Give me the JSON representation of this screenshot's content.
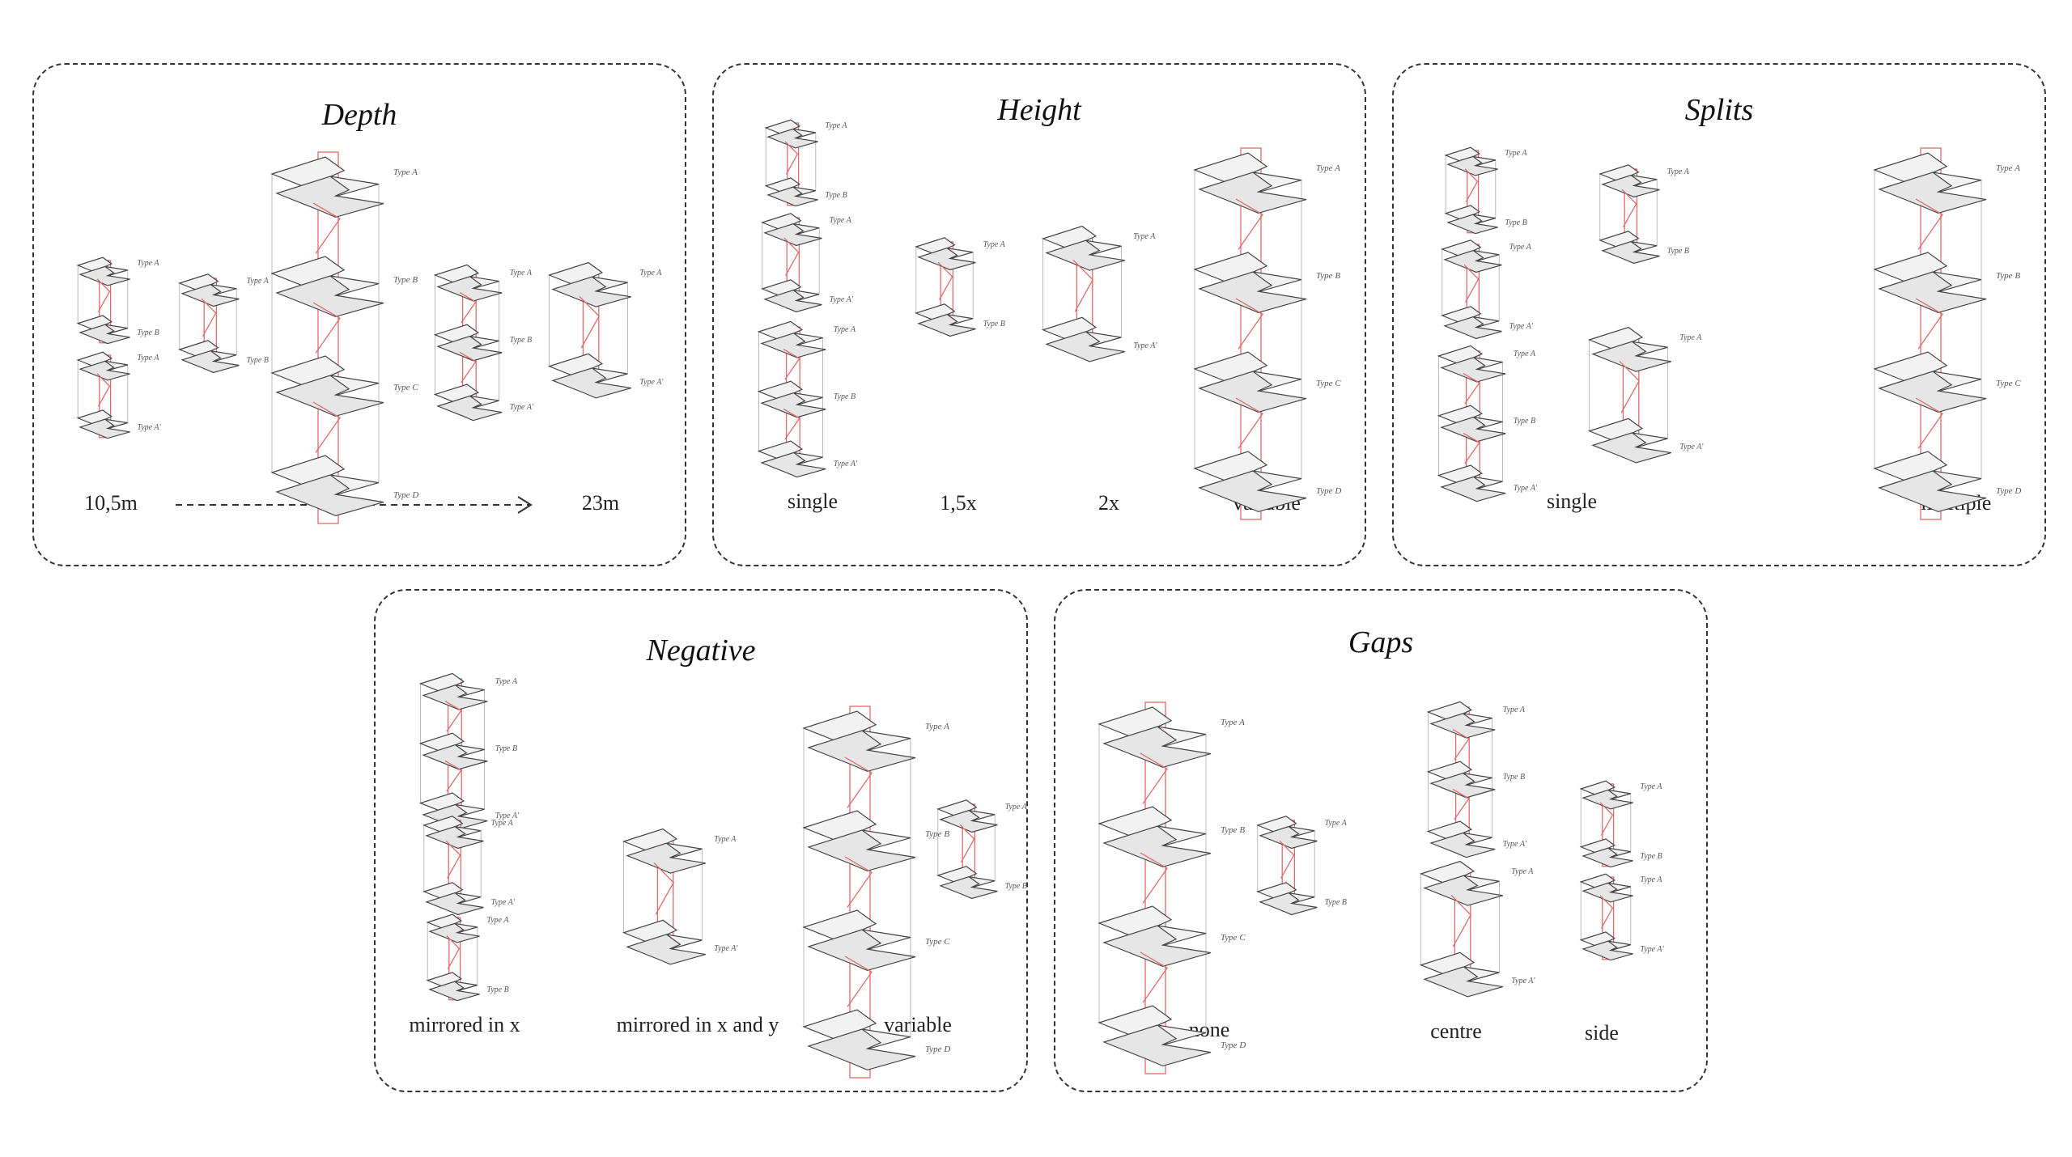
{
  "colors": {
    "line": "#444444",
    "accent": "#e06a6a",
    "border": "#333333"
  },
  "panels": {
    "depth": {
      "title": "Depth",
      "min_label": "10,5m",
      "max_label": "23m",
      "arrow_icon": "dashed-arrow-right",
      "groups": [
        {
          "labels": [
            "Type A",
            "Type B"
          ]
        },
        {
          "labels": [
            "Type A",
            "Type A'"
          ]
        },
        {
          "labels": [
            "Type A",
            "Type B"
          ]
        },
        {
          "labels": [
            "Type A",
            "Type B",
            "Type C",
            "Type D"
          ]
        },
        {
          "labels": [
            "Type A",
            "Type B",
            "Type A'"
          ]
        },
        {
          "labels": [
            "Type A",
            "Type A'"
          ]
        }
      ]
    },
    "height": {
      "title": "Height",
      "labels": [
        "single",
        "1,5x",
        "2x",
        "variable"
      ],
      "groups": [
        {
          "labels": [
            "Type A",
            "Type B"
          ]
        },
        {
          "labels": [
            "Type A",
            "Type A'"
          ]
        },
        {
          "labels": [
            "Type A",
            "Type B",
            "Type A'"
          ]
        },
        {
          "labels": [
            "Type A",
            "Type B"
          ]
        },
        {
          "labels": [
            "Type A",
            "Type A'"
          ]
        },
        {
          "labels": [
            "Type A",
            "Type B",
            "Type C",
            "Type D"
          ]
        }
      ]
    },
    "splits": {
      "title": "Splits",
      "labels": [
        "single",
        "multiple"
      ],
      "groups": [
        {
          "labels": [
            "Type A",
            "Type B"
          ]
        },
        {
          "labels": [
            "Type A",
            "Type A'"
          ]
        },
        {
          "labels": [
            "Type A",
            "Type B",
            "Type A'"
          ]
        },
        {
          "labels": [
            "Type A",
            "Type B"
          ]
        },
        {
          "labels": [
            "Type A",
            "Type A'"
          ]
        },
        {
          "labels": [
            "Type A",
            "Type B",
            "Type C",
            "Type D"
          ]
        }
      ]
    },
    "negative": {
      "title": "Negative",
      "labels": [
        "mirrored in x",
        "mirrored in x and y",
        "variable"
      ],
      "groups": [
        {
          "labels": [
            "Type A",
            "Type B",
            "Type A'"
          ]
        },
        {
          "labels": [
            "Type A",
            "Type A'"
          ]
        },
        {
          "labels": [
            "Type A",
            "Type B"
          ]
        },
        {
          "labels": [
            "Type A",
            "Type A'"
          ]
        },
        {
          "labels": [
            "Type A",
            "Type B",
            "Type C",
            "Type D"
          ]
        },
        {
          "labels": [
            "Type A",
            "Type B"
          ]
        }
      ]
    },
    "gaps": {
      "title": "Gaps",
      "labels": [
        "none",
        "centre",
        "side"
      ],
      "groups": [
        {
          "labels": [
            "Type A",
            "Type B",
            "Type C",
            "Type D"
          ]
        },
        {
          "labels": [
            "Type A",
            "Type B"
          ]
        },
        {
          "labels": [
            "Type A",
            "Type B",
            "Type A'"
          ]
        },
        {
          "labels": [
            "Type A",
            "Type A'"
          ]
        },
        {
          "labels": [
            "Type A",
            "Type B"
          ]
        },
        {
          "labels": [
            "Type A",
            "Type A'"
          ]
        }
      ]
    }
  }
}
